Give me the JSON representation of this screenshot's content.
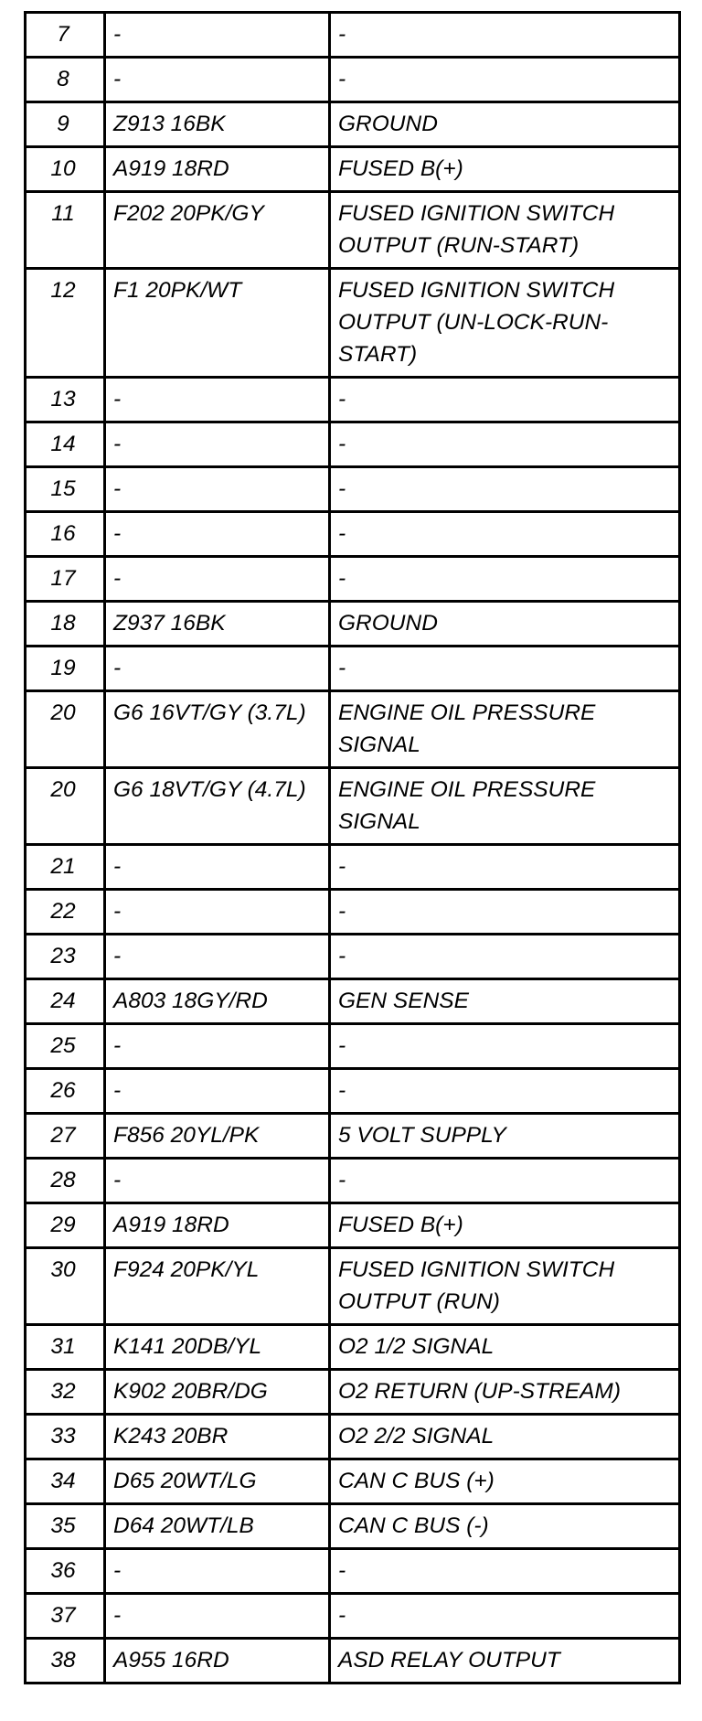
{
  "rows": [
    {
      "pin": "7",
      "wire": "-",
      "function": "-"
    },
    {
      "pin": "8",
      "wire": "-",
      "function": "-"
    },
    {
      "pin": "9",
      "wire": "Z913 16BK",
      "function": "GROUND"
    },
    {
      "pin": "10",
      "wire": "A919 18RD",
      "function": "FUSED B(+)"
    },
    {
      "pin": "11",
      "wire": "F202 20PK/GY",
      "function": "FUSED IGNITION SWITCH OUTPUT (RUN-START)"
    },
    {
      "pin": "12",
      "wire": "F1 20PK/WT",
      "function": "FUSED IGNITION SWITCH OUTPUT (UN-LOCK-RUN-START)"
    },
    {
      "pin": "13",
      "wire": "-",
      "function": "-"
    },
    {
      "pin": "14",
      "wire": "-",
      "function": "-"
    },
    {
      "pin": "15",
      "wire": "-",
      "function": "-"
    },
    {
      "pin": "16",
      "wire": "-",
      "function": "-"
    },
    {
      "pin": "17",
      "wire": "-",
      "function": "-"
    },
    {
      "pin": "18",
      "wire": "Z937 16BK",
      "function": "GROUND"
    },
    {
      "pin": "19",
      "wire": "-",
      "function": "-"
    },
    {
      "pin": "20",
      "wire": "G6 16VT/GY (3.7L)",
      "function": "ENGINE OIL PRESSURE SIGNAL"
    },
    {
      "pin": "20",
      "wire": "G6 18VT/GY (4.7L)",
      "function": "ENGINE OIL PRESSURE SIGNAL"
    },
    {
      "pin": "21",
      "wire": "-",
      "function": "-"
    },
    {
      "pin": "22",
      "wire": "-",
      "function": "-"
    },
    {
      "pin": "23",
      "wire": "-",
      "function": "-"
    },
    {
      "pin": "24",
      "wire": "A803 18GY/RD",
      "function": "GEN SENSE"
    },
    {
      "pin": "25",
      "wire": "-",
      "function": "-"
    },
    {
      "pin": "26",
      "wire": "-",
      "function": "-"
    },
    {
      "pin": "27",
      "wire": "F856 20YL/PK",
      "function": "5 VOLT SUPPLY"
    },
    {
      "pin": "28",
      "wire": "-",
      "function": "-"
    },
    {
      "pin": "29",
      "wire": "A919 18RD",
      "function": "FUSED B(+)"
    },
    {
      "pin": "30",
      "wire": "F924 20PK/YL",
      "function": "FUSED IGNITION SWITCH OUTPUT (RUN)"
    },
    {
      "pin": "31",
      "wire": "K141 20DB/YL",
      "function": "O2 1/2 SIGNAL"
    },
    {
      "pin": "32",
      "wire": "K902 20BR/DG",
      "function": "O2 RETURN (UP-STREAM)"
    },
    {
      "pin": "33",
      "wire": "K243 20BR",
      "function": "O2 2/2 SIGNAL"
    },
    {
      "pin": "34",
      "wire": "D65 20WT/LG",
      "function": "CAN C BUS (+)"
    },
    {
      "pin": "35",
      "wire": "D64 20WT/LB",
      "function": "CAN C BUS (-)"
    },
    {
      "pin": "36",
      "wire": "-",
      "function": "-"
    },
    {
      "pin": "37",
      "wire": "-",
      "function": "-"
    },
    {
      "pin": "38",
      "wire": "A955 16RD",
      "function": "ASD RELAY OUTPUT"
    }
  ]
}
